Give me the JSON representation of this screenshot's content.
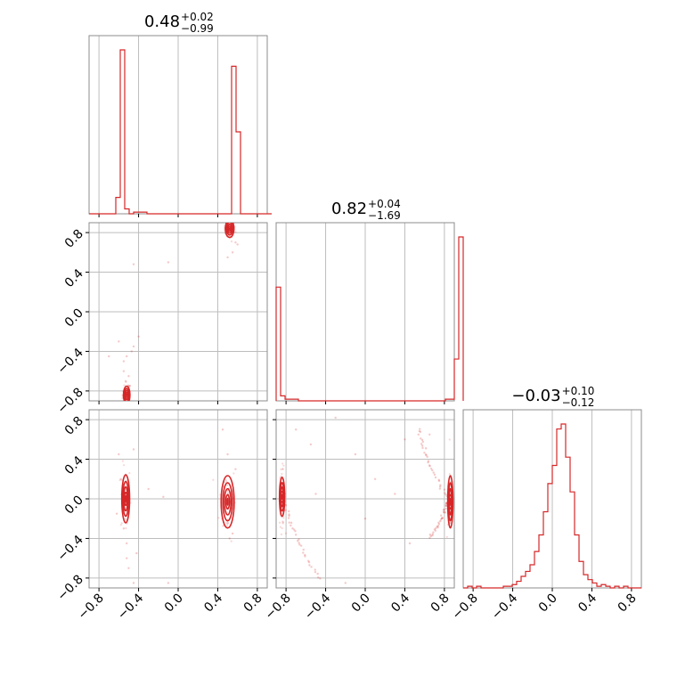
{
  "chart_data": {
    "type": "corner",
    "color": "#d62728",
    "grid": true,
    "tick_values": [
      -0.8,
      -0.4,
      0.0,
      0.4,
      0.8
    ],
    "tick_labels": [
      "−0.8",
      "−0.4",
      "0.0",
      "0.4",
      "0.8"
    ],
    "params": [
      {
        "range": [
          -0.9,
          0.9
        ],
        "title": {
          "value": "0.48",
          "plus": "+0.02",
          "minus": "−0.99"
        },
        "hist": {
          "edges_from": -0.9,
          "bin_width": 0.045,
          "counts": [
            0,
            0,
            0,
            0,
            0,
            0,
            0.1,
            1.0,
            0.03,
            0,
            0.01,
            0.01,
            0.01,
            0,
            0,
            0,
            0,
            0,
            0,
            0,
            0,
            0,
            0,
            0,
            0,
            0,
            0,
            0,
            0,
            0,
            0,
            0,
            0.9,
            0.5,
            0,
            0,
            0,
            0,
            0,
            0,
            0
          ]
        }
      },
      {
        "range": [
          -0.9,
          0.9
        ],
        "title": {
          "value": "0.82",
          "plus": "+0.04",
          "minus": "−1.69"
        },
        "hist": {
          "edges_from": -0.9,
          "bin_width": 0.045,
          "counts": [
            0.68,
            0.03,
            0.01,
            0.01,
            0.01,
            0,
            0,
            0,
            0,
            0,
            0,
            0,
            0,
            0,
            0,
            0,
            0,
            0,
            0,
            0,
            0,
            0,
            0,
            0,
            0,
            0,
            0,
            0,
            0,
            0,
            0,
            0,
            0,
            0,
            0,
            0,
            0,
            0,
            0.01,
            0.01,
            0.25,
            0.98
          ]
        }
      },
      {
        "range": [
          -0.9,
          0.9
        ],
        "title": {
          "value": "−0.03",
          "plus": "+0.10",
          "minus": "−0.12"
        },
        "hist": {
          "edges_from": -0.9,
          "bin_width": 0.045,
          "counts": [
            0,
            0.01,
            0,
            0.01,
            0,
            0,
            0,
            0,
            0,
            0.01,
            0.01,
            0.02,
            0.04,
            0.07,
            0.1,
            0.14,
            0.22,
            0.32,
            0.46,
            0.63,
            0.74,
            0.96,
            0.99,
            0.79,
            0.58,
            0.32,
            0.16,
            0.08,
            0.05,
            0.03,
            0.01,
            0.02,
            0.01,
            0,
            0.01,
            0,
            0.01,
            0,
            0,
            0
          ]
        }
      }
    ],
    "pairs": [
      {
        "row": 1,
        "col": 0,
        "clusters": [
          {
            "cx": -0.52,
            "cy": -0.84,
            "sx": 0.015,
            "sy": 0.04
          },
          {
            "cx": 0.52,
            "cy": 0.84,
            "sx": 0.02,
            "sy": 0.04
          }
        ],
        "scatter": [
          [
            -0.52,
            -0.45
          ],
          [
            -0.55,
            -0.6
          ],
          [
            -0.5,
            -0.75
          ],
          [
            -0.45,
            -0.35
          ],
          [
            -0.6,
            -0.3
          ],
          [
            -0.4,
            -0.25
          ],
          [
            -0.45,
            0.48
          ],
          [
            -0.1,
            0.5
          ],
          [
            0.55,
            0.6
          ],
          [
            0.58,
            0.7
          ],
          [
            0.5,
            0.55
          ],
          [
            -0.55,
            -0.5
          ],
          [
            -0.53,
            -0.7
          ],
          [
            -0.7,
            -0.45
          ],
          [
            0.6,
            0.68
          ],
          [
            0.54,
            0.78
          ],
          [
            -0.5,
            -0.65
          ],
          [
            -0.47,
            -0.4
          ]
        ]
      },
      {
        "row": 2,
        "col": 0,
        "clusters": [
          {
            "cx": -0.53,
            "cy": 0.0,
            "sx": 0.018,
            "sy": 0.11
          },
          {
            "cx": 0.5,
            "cy": -0.03,
            "sx": 0.03,
            "sy": 0.12
          }
        ],
        "scatter": [
          [
            -0.6,
            0.45
          ],
          [
            -0.45,
            0.5
          ],
          [
            -0.3,
            0.1
          ],
          [
            -0.5,
            -0.7
          ],
          [
            -0.45,
            -0.85
          ],
          [
            -0.55,
            -0.3
          ],
          [
            -0.52,
            -0.45
          ],
          [
            -0.58,
            0.2
          ],
          [
            0.5,
            0.45
          ],
          [
            0.55,
            -0.35
          ],
          [
            0.45,
            0.7
          ],
          [
            0.52,
            -0.4
          ],
          [
            -0.15,
            0.02
          ],
          [
            -0.42,
            -0.55
          ],
          [
            -0.62,
            -0.15
          ],
          [
            0.58,
            0.3
          ],
          [
            0.5,
            -0.25
          ],
          [
            -0.52,
            -0.6
          ],
          [
            -0.1,
            -0.85
          ]
        ]
      },
      {
        "row": 2,
        "col": 1,
        "clusters": [
          {
            "cx": -0.84,
            "cy": 0.02,
            "sx": 0.012,
            "sy": 0.09
          },
          {
            "cx": 0.86,
            "cy": -0.03,
            "sx": 0.012,
            "sy": 0.12
          }
        ],
        "arcs": [
          {
            "from": [
              -0.82,
              0.0
            ],
            "to": [
              -0.45,
              -0.82
            ],
            "bend": -0.1
          },
          {
            "from": [
              0.84,
              0.0
            ],
            "to": [
              0.55,
              0.72
            ],
            "bend": -0.1
          },
          {
            "from": [
              0.84,
              0.0
            ],
            "to": [
              0.65,
              -0.4
            ],
            "bend": 0.05
          }
        ],
        "scatter": [
          [
            -0.55,
            0.55
          ],
          [
            -0.3,
            0.82
          ],
          [
            -0.1,
            0.45
          ],
          [
            0.1,
            0.2
          ],
          [
            -0.5,
            0.05
          ],
          [
            0.3,
            0.05
          ],
          [
            0.0,
            -0.2
          ],
          [
            0.4,
            0.6
          ],
          [
            0.65,
            0.65
          ],
          [
            -0.2,
            -0.85
          ],
          [
            0.45,
            -0.45
          ],
          [
            -0.7,
            0.7
          ]
        ]
      }
    ]
  }
}
